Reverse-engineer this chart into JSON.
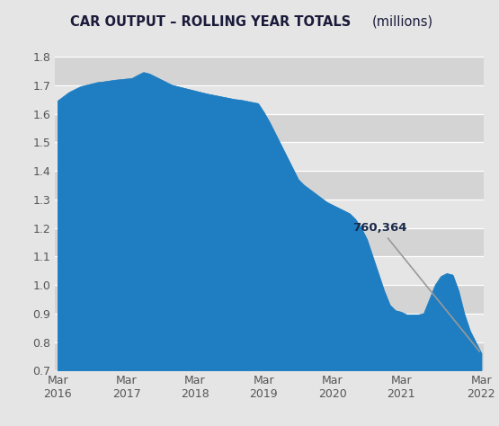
{
  "title_bold": "CAR OUTPUT – ROLLING YEAR TOTALS",
  "title_normal": "(millions)",
  "bg_color": "#e5e5e5",
  "plot_bg_color": "#e5e5e5",
  "fill_color": "#1f7ec2",
  "line_color": "#1f7ec2",
  "annotation_text": "760,364",
  "annotation_value": 0.760364,
  "ylim": [
    0.7,
    1.85
  ],
  "yticks": [
    0.7,
    0.8,
    0.9,
    1.0,
    1.1,
    1.2,
    1.3,
    1.4,
    1.5,
    1.6,
    1.7,
    1.8
  ],
  "stripe_colors": [
    "#d4d4d4",
    "#e5e5e5"
  ],
  "y": [
    1.645,
    1.66,
    1.675,
    1.685,
    1.695,
    1.7,
    1.705,
    1.71,
    1.712,
    1.715,
    1.718,
    1.72,
    1.722,
    1.724,
    1.735,
    1.745,
    1.74,
    1.73,
    1.72,
    1.71,
    1.7,
    1.695,
    1.69,
    1.685,
    1.68,
    1.675,
    1.67,
    1.666,
    1.662,
    1.658,
    1.654,
    1.65,
    1.648,
    1.644,
    1.64,
    1.636,
    1.605,
    1.57,
    1.53,
    1.49,
    1.45,
    1.41,
    1.37,
    1.35,
    1.335,
    1.32,
    1.305,
    1.29,
    1.28,
    1.27,
    1.26,
    1.25,
    1.23,
    1.2,
    1.16,
    1.1,
    1.04,
    0.98,
    0.93,
    0.91,
    0.905,
    0.895,
    0.895,
    0.895,
    0.9,
    0.95,
    1.0,
    1.03,
    1.04,
    1.035,
    0.98,
    0.9,
    0.84,
    0.8,
    0.760364
  ],
  "xtick_positions": [
    0,
    12,
    24,
    36,
    48,
    60,
    74
  ],
  "xtick_labels": [
    "Mar\n2016",
    "Mar\n2017",
    "Mar\n2018",
    "Mar\n2019",
    "Mar\n2020",
    "Mar\n2021",
    "Mar\n2022"
  ]
}
